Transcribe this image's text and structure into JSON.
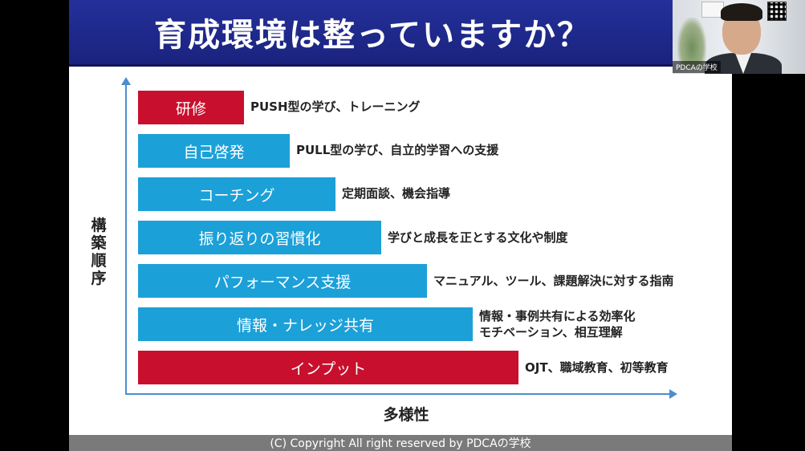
{
  "slide": {
    "title": "育成環境は整っていますか？",
    "y_axis_label": "構築順序",
    "x_axis_label": "多様性",
    "footer": "(C) Copyright All right reserved by PDCAの学校",
    "bars": [
      {
        "label": "研修",
        "description": "PUSH型の学び、トレーニング",
        "color": "#c8102e"
      },
      {
        "label": "自己啓発",
        "description": "PULL型の学び、自立的学習への支援",
        "color": "#1ca0d8"
      },
      {
        "label": "コーチング",
        "description": "定期面談、機会指導",
        "color": "#1ca0d8"
      },
      {
        "label": "振り返りの習慣化",
        "description": "学びと成長を正とする文化や制度",
        "color": "#1ca0d8"
      },
      {
        "label": "パフォーマンス支援",
        "description": "マニュアル、ツール、課題解決に対する指南",
        "color": "#1ca0d8"
      },
      {
        "label": "情報・ナレッジ共有",
        "description": "情報・事例共有による効率化",
        "description2": "モチベーション、相互理解",
        "color": "#1ca0d8"
      },
      {
        "label": "インプット",
        "description": "OJT、職域教育、初等教育",
        "color": "#c8102e"
      }
    ]
  },
  "webcam": {
    "label": "PDCAの学校"
  }
}
